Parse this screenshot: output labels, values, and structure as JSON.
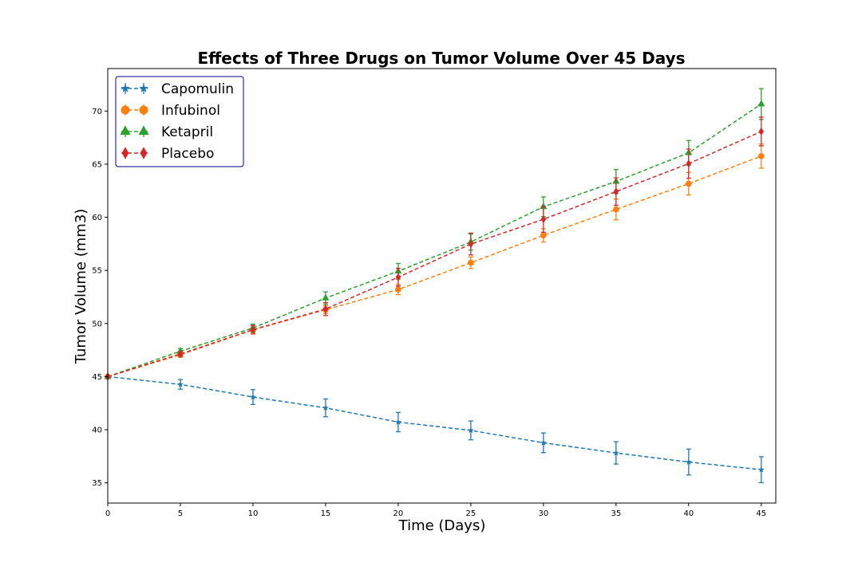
{
  "chart_data": {
    "type": "line",
    "title": "Effects of Three Drugs on Tumor Volume Over 45 Days",
    "xlabel": "Time (Days)",
    "ylabel": "Tumor Volume (mm3)",
    "xlim": [
      0,
      46
    ],
    "ylim": [
      33.1,
      74.0
    ],
    "xticks": [
      0,
      5,
      10,
      15,
      20,
      25,
      30,
      35,
      40,
      45
    ],
    "yticks": [
      35,
      40,
      45,
      50,
      55,
      60,
      65,
      70
    ],
    "grid": false,
    "legend_position": "top-left",
    "line_style": "dashed",
    "error_bars": true,
    "x": [
      0,
      5,
      10,
      15,
      20,
      25,
      30,
      35,
      40,
      45
    ],
    "series": [
      {
        "name": "Capomulin",
        "color": "#1f77b4",
        "marker": "star",
        "values": [
          45.0,
          44.27,
          43.08,
          42.06,
          40.72,
          39.94,
          38.77,
          37.82,
          36.96,
          36.24
        ],
        "errors": [
          0.0,
          0.45,
          0.7,
          0.84,
          0.91,
          0.89,
          0.93,
          1.05,
          1.22,
          1.22
        ]
      },
      {
        "name": "Infubinol",
        "color": "#ff7f0e",
        "marker": "circle",
        "values": [
          45.0,
          47.06,
          49.4,
          51.3,
          53.2,
          55.72,
          58.3,
          60.74,
          63.16,
          65.76
        ],
        "errors": [
          0.0,
          0.24,
          0.28,
          0.36,
          0.48,
          0.55,
          0.63,
          0.98,
          1.06,
          1.14
        ]
      },
      {
        "name": "Ketapril",
        "color": "#2ca02c",
        "marker": "triangle",
        "values": [
          45.0,
          47.39,
          49.58,
          52.4,
          54.92,
          57.68,
          60.99,
          63.37,
          66.07,
          70.66
        ],
        "errors": [
          0.0,
          0.26,
          0.36,
          0.58,
          0.73,
          0.76,
          0.93,
          1.13,
          1.16,
          1.45
        ]
      },
      {
        "name": "Placebo",
        "color": "#d62728",
        "marker": "diamond",
        "values": [
          45.0,
          47.13,
          49.42,
          51.36,
          54.36,
          57.48,
          59.81,
          62.42,
          65.05,
          68.08
        ],
        "errors": [
          0.0,
          0.22,
          0.4,
          0.61,
          0.84,
          1.03,
          1.22,
          1.29,
          1.37,
          1.35
        ]
      }
    ]
  }
}
